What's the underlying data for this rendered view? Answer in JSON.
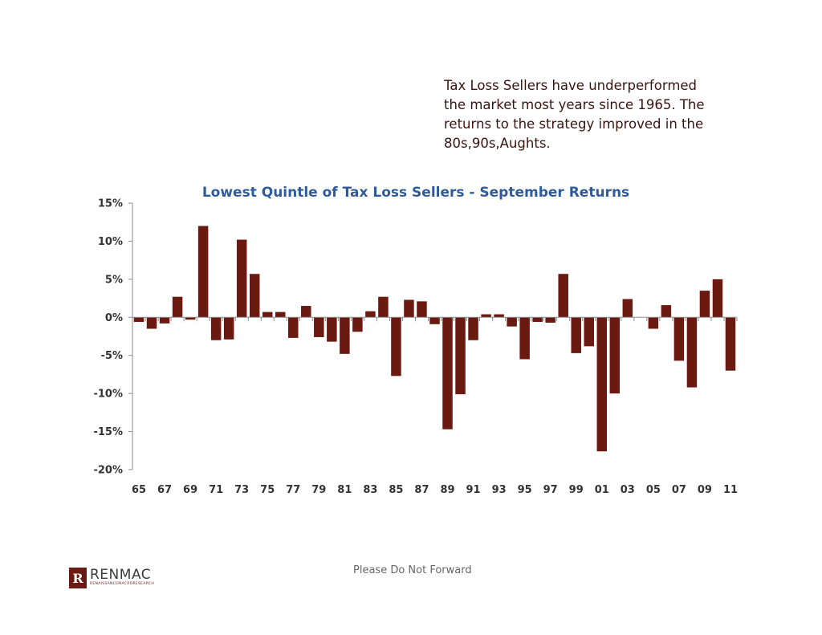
{
  "annotation": {
    "lines": [
      "Tax Loss Sellers have underperformed",
      "the market most years since 1965. The",
      "returns to the strategy improved in the",
      "80s,90s,Aughts."
    ]
  },
  "footer": {
    "note": "Please Do Not Forward",
    "logo_mark": "R",
    "logo_name": "RENMAC",
    "logo_tagline": "RENAISSANCEMACRORESEARCH"
  },
  "chart_data": {
    "type": "bar",
    "title": "Lowest Quintle of Tax Loss Sellers - September Returns",
    "xlabel": "",
    "ylabel": "",
    "ylim": [
      -20,
      15
    ],
    "yticks": [
      15,
      10,
      5,
      0,
      -5,
      -10,
      -15,
      -20
    ],
    "ytick_labels": [
      "15%",
      "10%",
      "5%",
      "0%",
      "-5%",
      "-10%",
      "-15%",
      "-20%"
    ],
    "grid": false,
    "legend": "none",
    "bar_color": "#6b1a12",
    "categories": [
      "65",
      "66",
      "67",
      "68",
      "69",
      "70",
      "71",
      "72",
      "73",
      "74",
      "75",
      "76",
      "77",
      "78",
      "79",
      "80",
      "81",
      "82",
      "83",
      "84",
      "85",
      "86",
      "87",
      "88",
      "89",
      "90",
      "91",
      "92",
      "93",
      "94",
      "95",
      "96",
      "97",
      "98",
      "99",
      "00",
      "01",
      "02",
      "03",
      "04",
      "05",
      "06",
      "07",
      "08",
      "09",
      "10",
      "11"
    ],
    "values": [
      -0.6,
      -1.5,
      -0.8,
      2.7,
      -0.3,
      12.0,
      -3.0,
      -2.9,
      10.2,
      5.7,
      0.7,
      0.7,
      -2.7,
      1.5,
      -2.6,
      -3.2,
      -4.8,
      -1.9,
      0.8,
      2.7,
      -7.7,
      2.3,
      2.1,
      -0.9,
      -14.7,
      -10.1,
      -3.0,
      0.4,
      0.4,
      -1.2,
      -5.5,
      -0.6,
      -0.7,
      5.7,
      -4.7,
      -3.8,
      -17.6,
      -10.0,
      2.4,
      0.0,
      -1.5,
      1.6,
      -5.7,
      -9.2,
      3.5,
      5.0,
      -7.0
    ],
    "xtick_labels": [
      "65",
      "67",
      "69",
      "71",
      "73",
      "75",
      "77",
      "79",
      "81",
      "83",
      "85",
      "87",
      "89",
      "91",
      "93",
      "95",
      "97",
      "99",
      "01",
      "03",
      "05",
      "07",
      "09",
      "11"
    ]
  }
}
